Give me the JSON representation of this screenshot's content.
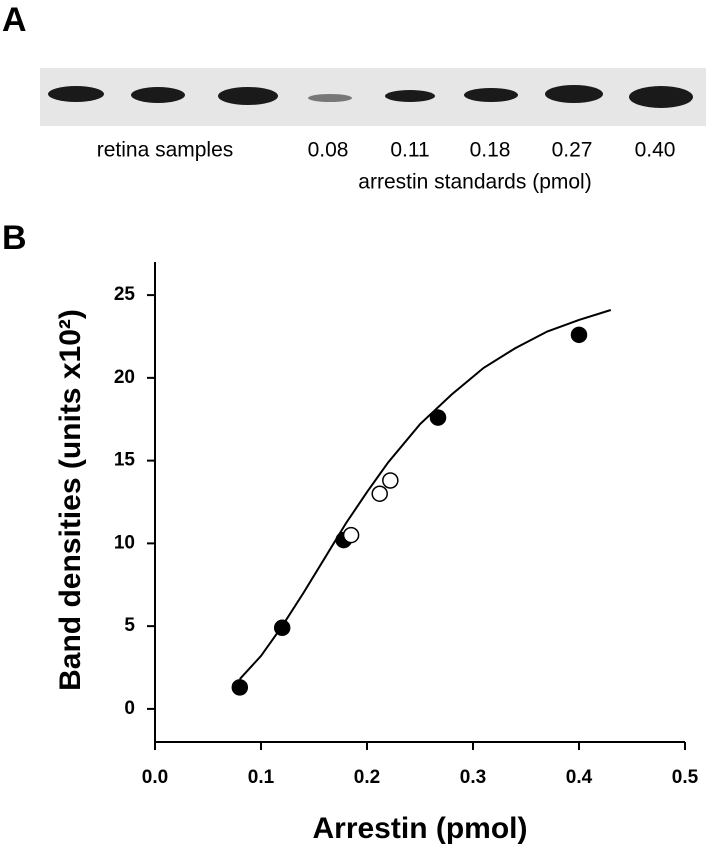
{
  "blot": {
    "panel_label": "A",
    "group_label": "retina samples",
    "lanes": [
      "0.08",
      "0.11",
      "0.18",
      "0.27",
      "0.40"
    ],
    "caption": "arrestin standards  (pmol)"
  },
  "chart_data": {
    "type": "scatter",
    "panel_label": "B",
    "xlabel": "Arrestin (pmol)",
    "ylabel": "Band densities (units x10²)",
    "xlim": [
      0,
      0.5
    ],
    "ylim": [
      -2,
      27
    ],
    "xticks": [
      {
        "value": 0,
        "label": "0.0"
      },
      0.1,
      0.2,
      0.3,
      0.4,
      0.5
    ],
    "yticks": [
      0,
      5,
      10,
      15,
      20,
      25
    ],
    "series": [
      {
        "mark": "line",
        "color": "#000000",
        "x": [
          0.08,
          0.1,
          0.12,
          0.14,
          0.16,
          0.18,
          0.2,
          0.22,
          0.25,
          0.28,
          0.31,
          0.34,
          0.37,
          0.4,
          0.43
        ],
        "values": [
          1.8,
          3.2,
          5.0,
          7.0,
          9.1,
          11.2,
          13.1,
          14.9,
          17.2,
          19.0,
          20.6,
          21.8,
          22.8,
          23.5,
          24.1
        ]
      },
      {
        "mark": "circle",
        "color": "#000000",
        "fill": "#000000",
        "x": [
          0.08,
          0.12,
          0.178,
          0.267,
          0.4
        ],
        "values": [
          1.3,
          4.9,
          10.2,
          17.6,
          22.6
        ]
      },
      {
        "mark": "circle",
        "color": "#000000",
        "fill": "#ffffff",
        "x": [
          0.185,
          0.212,
          0.222
        ],
        "values": [
          10.5,
          13.0,
          13.8
        ]
      }
    ]
  }
}
